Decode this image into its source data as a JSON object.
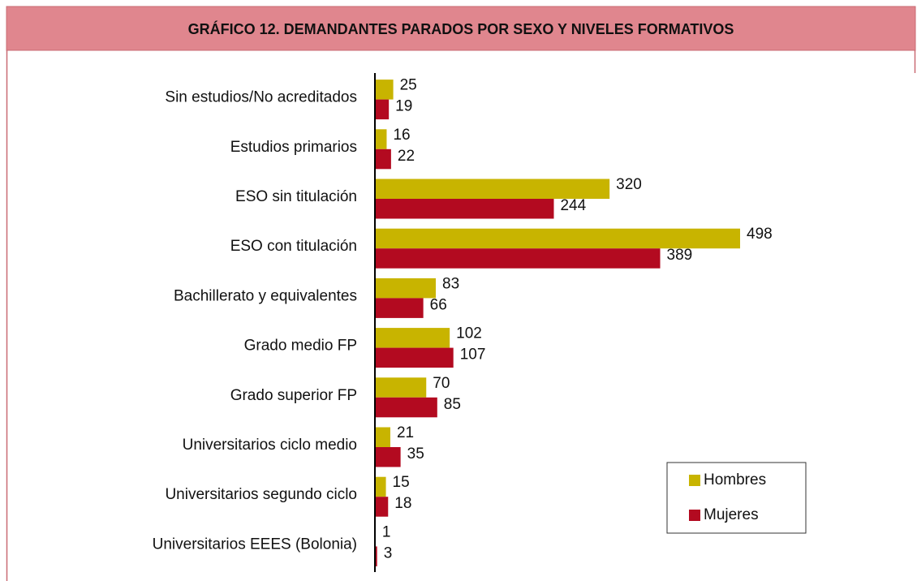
{
  "chart_data": {
    "type": "bar",
    "orientation": "horizontal",
    "title": "GRÁFICO 12. DEMANDANTES PARADOS POR SEXO Y NIVELES FORMATIVOS",
    "categories": [
      "Sin estudios/No acreditados",
      "Estudios primarios",
      "ESO sin titulación",
      "ESO con titulación",
      "Bachillerato y equivalentes",
      "Grado medio FP",
      "Grado superior FP",
      "Universitarios ciclo medio",
      "Universitarios segundo ciclo",
      "Universitarios EEES (Bolonia)"
    ],
    "series": [
      {
        "name": "Hombres",
        "color": "#c8b400",
        "values": [
          25,
          16,
          320,
          498,
          83,
          102,
          70,
          21,
          15,
          1
        ]
      },
      {
        "name": "Mujeres",
        "color": "#b30a20",
        "values": [
          19,
          22,
          244,
          389,
          66,
          107,
          85,
          35,
          18,
          3
        ]
      }
    ],
    "xlim": [
      0,
      550
    ],
    "legend": "lower right"
  }
}
